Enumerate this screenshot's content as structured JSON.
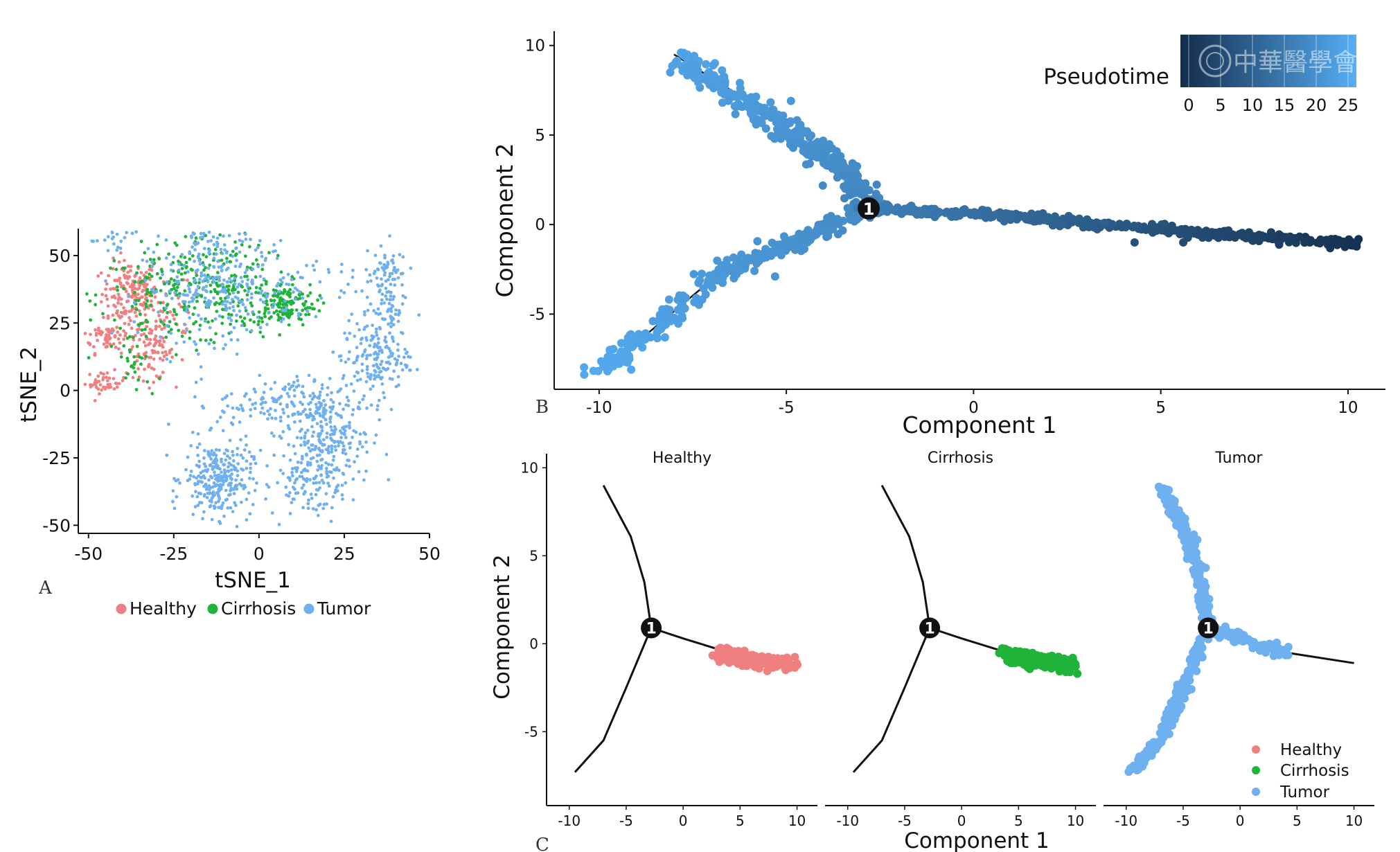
{
  "panel_letters": {
    "a": "A",
    "b": "B",
    "c": "C"
  },
  "watermark_text": "中華醫學會",
  "colors": {
    "healthy": "#f08080",
    "cirrhosis": "#1fb33a",
    "tumor": "#6fb0f0",
    "pseudotime_low": "#132c4a",
    "pseudotime_high": "#56aef5",
    "trajectory": "#111111",
    "branch_node": "#111111"
  },
  "chart_data": [
    {
      "id": "A",
      "type": "scatter",
      "xlabel": "tSNE_1",
      "ylabel": "tSNE_2",
      "xlim": [
        -53,
        50
      ],
      "ylim": [
        -53,
        60
      ],
      "xticks": [
        -50,
        -25,
        0,
        25,
        50
      ],
      "yticks": [
        -50,
        -25,
        0,
        25,
        50
      ],
      "legend": {
        "placement": "bottom",
        "entries": [
          "Healthy",
          "Cirrhosis",
          "Tumor"
        ]
      },
      "clusters": [
        {
          "group": "Healthy",
          "cx": -38,
          "cy": 36,
          "sx": 4,
          "sy": 6,
          "n": 150
        },
        {
          "group": "Healthy",
          "cx": -44,
          "cy": 20,
          "sx": 4,
          "sy": 3,
          "n": 80
        },
        {
          "group": "Healthy",
          "cx": -45,
          "cy": 3,
          "sx": 3,
          "sy": 2,
          "n": 45
        },
        {
          "group": "Healthy",
          "cx": -31,
          "cy": 14,
          "sx": 3,
          "sy": 5,
          "n": 70
        },
        {
          "group": "Healthy",
          "cx": -28,
          "cy": 28,
          "sx": 6,
          "sy": 10,
          "n": 60
        },
        {
          "group": "Cirrhosis",
          "cx": -25,
          "cy": 35,
          "sx": 11,
          "sy": 9,
          "n": 200
        },
        {
          "group": "Cirrhosis",
          "cx": 7,
          "cy": 32,
          "sx": 5,
          "sy": 4,
          "n": 160
        },
        {
          "group": "Cirrhosis",
          "cx": -10,
          "cy": 40,
          "sx": 7,
          "sy": 10,
          "n": 120
        },
        {
          "group": "Cirrhosis",
          "cx": -36,
          "cy": 10,
          "sx": 3,
          "sy": 6,
          "n": 25
        },
        {
          "group": "Tumor",
          "cx": -12,
          "cy": 37,
          "sx": 11,
          "sy": 9,
          "n": 260
        },
        {
          "group": "Tumor",
          "cx": 14,
          "cy": 38,
          "sx": 9,
          "sy": 6,
          "n": 40
        },
        {
          "group": "Tumor",
          "cx": -12,
          "cy": 55,
          "sx": 7,
          "sy": 3,
          "n": 40
        },
        {
          "group": "Tumor",
          "cx": -12,
          "cy": -33,
          "sx": 5,
          "sy": 7,
          "n": 280
        },
        {
          "group": "Tumor",
          "cx": 10,
          "cy": -5,
          "sx": 11,
          "sy": 5,
          "n": 190
        },
        {
          "group": "Tumor",
          "cx": 21,
          "cy": -18,
          "sx": 6,
          "sy": 7,
          "n": 170
        },
        {
          "group": "Tumor",
          "cx": 15,
          "cy": -33,
          "sx": 6,
          "sy": 7,
          "n": 130
        },
        {
          "group": "Tumor",
          "cx": 34,
          "cy": 12,
          "sx": 5,
          "sy": 7,
          "n": 160
        },
        {
          "group": "Tumor",
          "cx": 37,
          "cy": 38,
          "sx": 3,
          "sy": 10,
          "n": 120
        },
        {
          "group": "Tumor",
          "cx": -42,
          "cy": 55,
          "sx": 4,
          "sy": 3,
          "n": 25
        }
      ]
    },
    {
      "id": "B",
      "type": "scatter",
      "xlabel": "Component 1",
      "ylabel": "Component 2",
      "xlim": [
        -11.2,
        11
      ],
      "ylim": [
        -9.2,
        10.8
      ],
      "xticks": [
        -10,
        -5,
        0,
        5,
        10
      ],
      "yticks": [
        -5,
        0,
        5,
        10
      ],
      "color_scale": {
        "title": "Pseudotime",
        "ticks": [
          0,
          5,
          10,
          15,
          20,
          25
        ],
        "range": [
          0,
          25
        ]
      },
      "branch_point": {
        "label": "1",
        "x": -2.8,
        "y": 0.9
      },
      "trajectory": {
        "upper": [
          [
            -2.8,
            0.9
          ],
          [
            -3.3,
            2.6
          ],
          [
            -4.3,
            4.3
          ],
          [
            -6.1,
            7.0
          ],
          [
            -8.0,
            9.5
          ]
        ],
        "lower": [
          [
            -2.8,
            0.9
          ],
          [
            -4.5,
            -0.8
          ],
          [
            -6.6,
            -2.4
          ],
          [
            -8.6,
            -5.9
          ],
          [
            -10.0,
            -8.2
          ]
        ],
        "right": [
          [
            -2.8,
            0.9
          ],
          [
            0.0,
            0.6
          ],
          [
            5.0,
            -0.3
          ],
          [
            10.3,
            -1.1
          ]
        ]
      },
      "point_bands": [
        {
          "branch": "upper",
          "width": 0.25,
          "pseudotime": [
            2,
            8
          ],
          "n": 320
        },
        {
          "branch": "lower",
          "width": 0.2,
          "pseudotime": [
            1,
            7
          ],
          "n": 300
        },
        {
          "branch": "right",
          "width": 0.12,
          "pseudotime": [
            9,
            24
          ],
          "n": 420
        }
      ],
      "extra_points": [
        {
          "x": -8.1,
          "y": 8.5,
          "pseudotime": 3
        },
        {
          "x": -5.3,
          "y": -2.9,
          "pseudotime": 5
        },
        {
          "x": -6.4,
          "y": -3.0,
          "pseudotime": 5
        },
        {
          "x": 4.3,
          "y": -1.0,
          "pseudotime": 18
        },
        {
          "x": 5.6,
          "y": -1.0,
          "pseudotime": 19
        },
        {
          "x": 3.5,
          "y": 0.1,
          "pseudotime": 15
        }
      ]
    },
    {
      "id": "C",
      "type": "scatter",
      "xlabel": "Component 1",
      "ylabel": "Component 2",
      "xlim": [
        -11.2,
        11
      ],
      "ylim": [
        -9.2,
        10.8
      ],
      "xticks": [
        -10,
        -5,
        0,
        5,
        10
      ],
      "yticks": [
        -5,
        0,
        5,
        10
      ],
      "legend": {
        "placement": "bottom-right",
        "entries": [
          "Healthy",
          "Cirrhosis",
          "Tumor"
        ]
      },
      "facets": [
        {
          "title": "Healthy",
          "group": "Healthy",
          "branch_point": {
            "label": "1",
            "x": -2.8,
            "y": 0.9
          },
          "points": {
            "region": "right",
            "t_range": [
              0.45,
              1.0
            ],
            "n": 160
          }
        },
        {
          "title": "Cirrhosis",
          "group": "Cirrhosis",
          "branch_point": {
            "label": "1",
            "x": -2.8,
            "y": 0.9
          },
          "points": {
            "region": "right",
            "t_range": [
              0.5,
              1.0
            ],
            "n": 180
          }
        },
        {
          "title": "Tumor",
          "group": "Tumor",
          "branch_point": {
            "label": "1",
            "x": -2.8,
            "y": 0.9
          },
          "points": {
            "region": "all",
            "n": 520
          }
        }
      ],
      "trajectory": {
        "upper": [
          [
            -2.8,
            0.9
          ],
          [
            -3.4,
            3.5
          ],
          [
            -4.6,
            6.1
          ],
          [
            -7.0,
            9.0
          ]
        ],
        "lower": [
          [
            -2.8,
            0.9
          ],
          [
            -5.0,
            -2.5
          ],
          [
            -7.0,
            -5.5
          ],
          [
            -9.5,
            -7.3
          ]
        ],
        "right": [
          [
            -2.8,
            0.9
          ],
          [
            0.0,
            0.3
          ],
          [
            4.0,
            -0.5
          ],
          [
            10.0,
            -1.1
          ]
        ]
      }
    }
  ]
}
